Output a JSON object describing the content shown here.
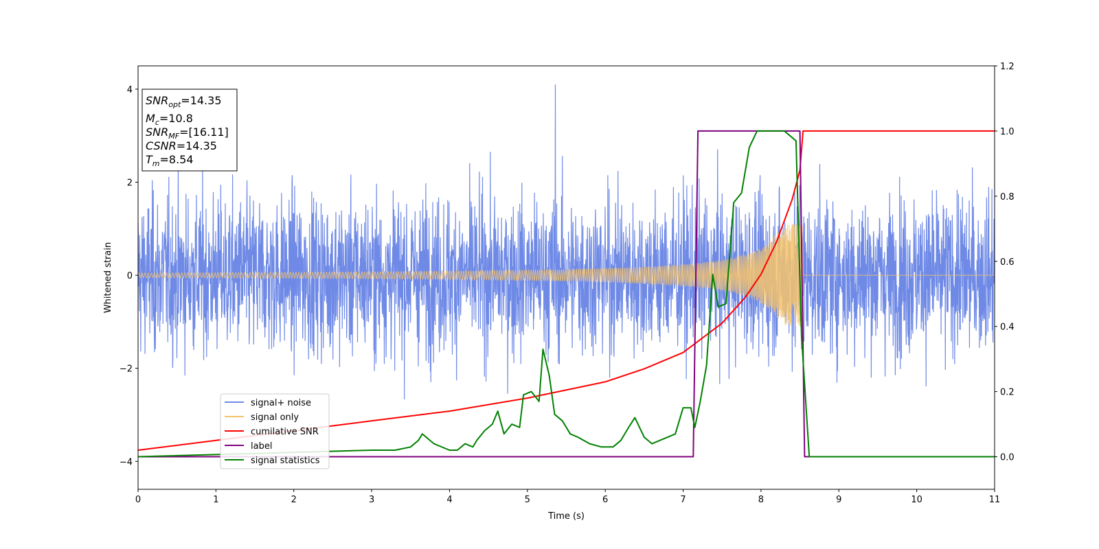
{
  "chart_data": {
    "type": "line",
    "xlabel": "Time (s)",
    "ylabel": "Whitened strain",
    "xlim": [
      0,
      11
    ],
    "ylim": [
      -4.6,
      4.5
    ],
    "y2lim": [
      -0.1,
      1.2
    ],
    "x_ticks": [
      0,
      1,
      2,
      3,
      4,
      5,
      6,
      7,
      8,
      9,
      10,
      11
    ],
    "y_ticks": [
      -4,
      -2,
      0,
      2,
      4
    ],
    "y2_ticks": [
      0.0,
      0.2,
      0.4,
      0.6,
      0.8,
      1.0,
      1.2
    ],
    "grid": false,
    "legend_position": "lower-left",
    "info_box": {
      "snr_opt": {
        "base": "SNR",
        "sub": "opt",
        "value": "=14.35"
      },
      "mc": {
        "base": "M",
        "sub": "c",
        "value": "=10.8"
      },
      "snr_mf": {
        "base": "SNR",
        "sub": "MF",
        "value": "=[16.11]"
      },
      "csnr": {
        "base": "CSNR",
        "value": "=14.35"
      },
      "tm": {
        "base": "T",
        "sub": "m",
        "value": "=8.54"
      }
    },
    "series": [
      {
        "name": "signal+ noise",
        "color": "#6f8ae6",
        "axis": "left",
        "kind": "noise",
        "noise_sigma": 0.85,
        "merger_time": 8.54,
        "peak": 4.1
      },
      {
        "name": "signal only",
        "color": "#f5c26b",
        "axis": "left",
        "kind": "chirp",
        "start_amplitude": 0.05,
        "peak_amplitude": 1.1,
        "merger_time": 8.54
      },
      {
        "name": "cumilative SNR",
        "color": "#ff0000",
        "axis": "right",
        "x": [
          0,
          1,
          2,
          3,
          4,
          5,
          6,
          6.5,
          7,
          7.5,
          7.8,
          8.0,
          8.2,
          8.4,
          8.5,
          8.54,
          11
        ],
        "y": [
          0.02,
          0.05,
          0.08,
          0.11,
          0.14,
          0.18,
          0.23,
          0.27,
          0.32,
          0.41,
          0.49,
          0.56,
          0.66,
          0.79,
          0.88,
          1.0,
          1.0
        ]
      },
      {
        "name": "label",
        "color": "#800080",
        "axis": "right",
        "x": [
          0,
          7.13,
          7.19,
          8.5,
          8.56,
          11
        ],
        "y": [
          0,
          0,
          1,
          1,
          0,
          0
        ]
      },
      {
        "name": "signal statistics",
        "color": "#008000",
        "axis": "right",
        "x": [
          0,
          3.0,
          3.3,
          3.5,
          3.6,
          3.65,
          3.8,
          4.0,
          4.1,
          4.2,
          4.3,
          4.35,
          4.45,
          4.55,
          4.62,
          4.7,
          4.8,
          4.9,
          4.95,
          5.05,
          5.15,
          5.2,
          5.28,
          5.35,
          5.45,
          5.55,
          5.65,
          5.8,
          5.95,
          6.1,
          6.2,
          6.3,
          6.38,
          6.5,
          6.6,
          6.7,
          6.8,
          6.9,
          7.0,
          7.1,
          7.15,
          7.22,
          7.3,
          7.38,
          7.45,
          7.55,
          7.65,
          7.75,
          7.85,
          7.95,
          8.1,
          8.3,
          8.45,
          8.52,
          8.62,
          11
        ],
        "y": [
          0.0,
          0.02,
          0.02,
          0.03,
          0.05,
          0.07,
          0.04,
          0.02,
          0.02,
          0.04,
          0.03,
          0.05,
          0.08,
          0.1,
          0.14,
          0.07,
          0.1,
          0.09,
          0.19,
          0.2,
          0.17,
          0.33,
          0.25,
          0.13,
          0.11,
          0.07,
          0.06,
          0.04,
          0.03,
          0.03,
          0.05,
          0.09,
          0.12,
          0.06,
          0.04,
          0.05,
          0.06,
          0.07,
          0.15,
          0.15,
          0.09,
          0.17,
          0.28,
          0.56,
          0.46,
          0.47,
          0.78,
          0.81,
          0.95,
          1.0,
          1.0,
          1.0,
          0.97,
          0.37,
          0.0,
          0.0
        ]
      }
    ]
  }
}
